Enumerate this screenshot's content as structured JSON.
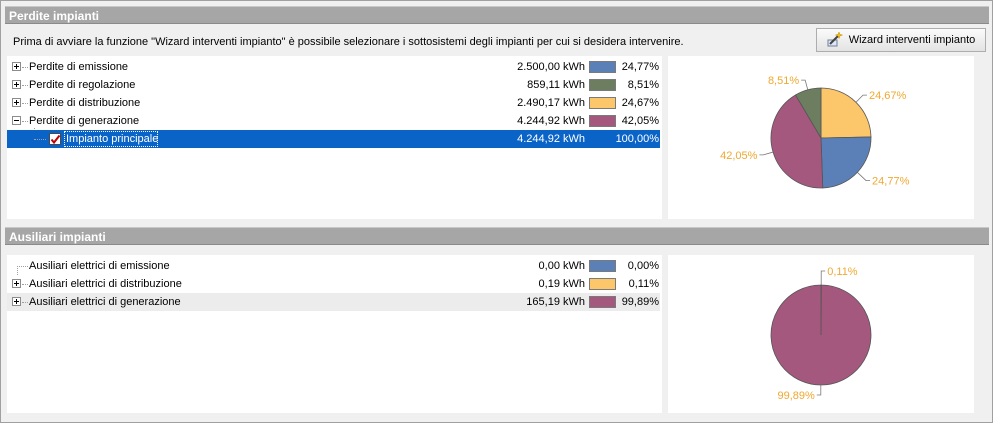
{
  "perdite": {
    "title": "Perdite impianti",
    "intro": "Prima di avviare la funzione \"Wizard interventi impianto\" è possibile selezionare i sottosistemi degli impianti per cui si desidera intervenire.",
    "wizard_button": "Wizard interventi impianto",
    "rows": [
      {
        "label": "Perdite di emissione",
        "kwh": "2.500,00 kWh",
        "pct": "24,77%",
        "color": "#5b80b8"
      },
      {
        "label": "Perdite di regolazione",
        "kwh": "859,11 kWh",
        "pct": "8,51%",
        "color": "#6d7d60"
      },
      {
        "label": "Perdite di distribuzione",
        "kwh": "2.490,17 kWh",
        "pct": "24,67%",
        "color": "#fcc66a"
      },
      {
        "label": "Perdite di generazione",
        "kwh": "4.244,92 kWh",
        "pct": "42,05%",
        "color": "#a4587e"
      }
    ],
    "child": {
      "label": "Impianto principale",
      "kwh": "4.244,92 kWh",
      "pct": "100,00%",
      "checked": true
    }
  },
  "ausiliari": {
    "title": "Ausiliari impianti",
    "rows": [
      {
        "label": "Ausiliari elettrici di emissione",
        "kwh": "0,00 kWh",
        "pct": "0,00%",
        "color": "#5b80b8"
      },
      {
        "label": "Ausiliari elettrici di distribuzione",
        "kwh": "0,19 kWh",
        "pct": "0,11%",
        "color": "#fcc66a"
      },
      {
        "label": "Ausiliari elettrici di generazione",
        "kwh": "165,19 kWh",
        "pct": "99,89%",
        "color": "#a4587e"
      }
    ]
  },
  "chart_data": [
    {
      "type": "pie",
      "title": "",
      "categories": [
        "Perdite di distribuzione",
        "Perdite di emissione",
        "Perdite di generazione",
        "Perdite di regolazione"
      ],
      "values": [
        24.67,
        24.77,
        42.05,
        8.51
      ],
      "labels": [
        "24,67%",
        "24,77%",
        "42,05%",
        "8,51%"
      ],
      "colors": [
        "#fcc66a",
        "#5b80b8",
        "#a4587e",
        "#6d7d60"
      ],
      "start_angle_deg": 0,
      "direction": "clockwise"
    },
    {
      "type": "pie",
      "title": "",
      "categories": [
        "Ausiliari elettrici di distribuzione",
        "Ausiliari elettrici di generazione",
        "Ausiliari elettrici di emissione"
      ],
      "values": [
        0.11,
        99.89,
        0.0
      ],
      "labels": [
        "0,11%",
        "99,89%",
        ""
      ],
      "colors": [
        "#fcc66a",
        "#a4587e",
        "#5b80b8"
      ],
      "start_angle_deg": 0,
      "direction": "clockwise"
    }
  ]
}
